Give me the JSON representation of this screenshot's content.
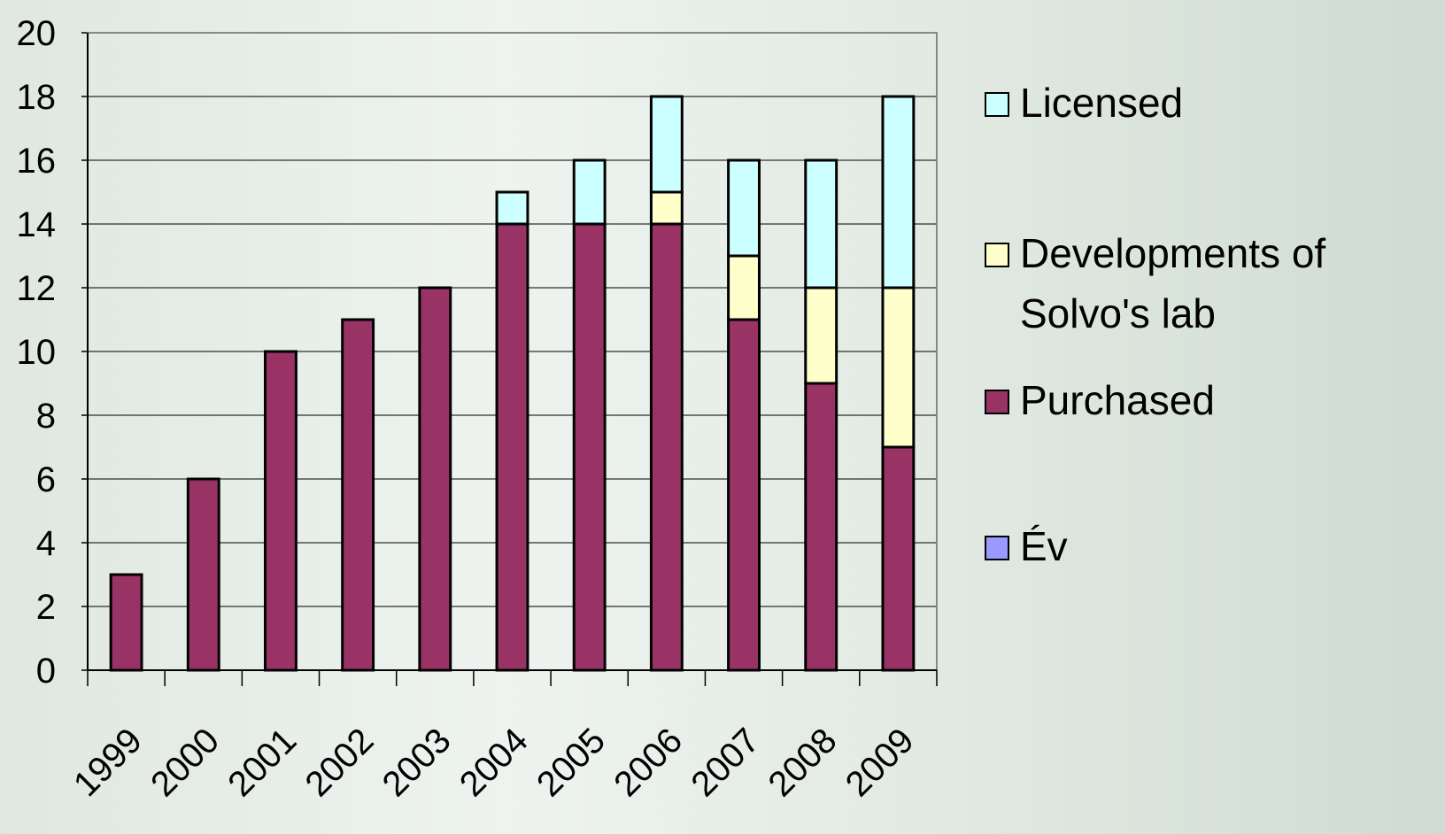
{
  "chart_data": {
    "type": "stacked_bar",
    "categories": [
      "1999",
      "2000",
      "2001",
      "2002",
      "2003",
      "2004",
      "2005",
      "2006",
      "2007",
      "2008",
      "2009"
    ],
    "series": [
      {
        "name": "Év",
        "color": "#9999ff",
        "values": [
          null,
          null,
          null,
          null,
          null,
          null,
          null,
          null,
          null,
          null,
          null
        ]
      },
      {
        "name": "Purchased",
        "color": "#993366",
        "values": [
          3,
          6,
          10,
          11,
          12,
          14,
          14,
          14,
          11,
          9,
          7
        ]
      },
      {
        "name": "Developments of Solvo's lab",
        "color": "#ffffcc",
        "values": [
          0,
          0,
          0,
          0,
          0,
          0,
          0,
          1,
          2,
          3,
          5
        ]
      },
      {
        "name": "Licensed",
        "color": "#ccffff",
        "values": [
          0,
          0,
          0,
          0,
          0,
          1,
          2,
          3,
          3,
          4,
          6
        ]
      }
    ],
    "ylim": [
      0,
      20
    ],
    "yticks": [
      0,
      2,
      4,
      6,
      8,
      10,
      12,
      14,
      16,
      18,
      20
    ],
    "grid": true,
    "legend": "right"
  }
}
